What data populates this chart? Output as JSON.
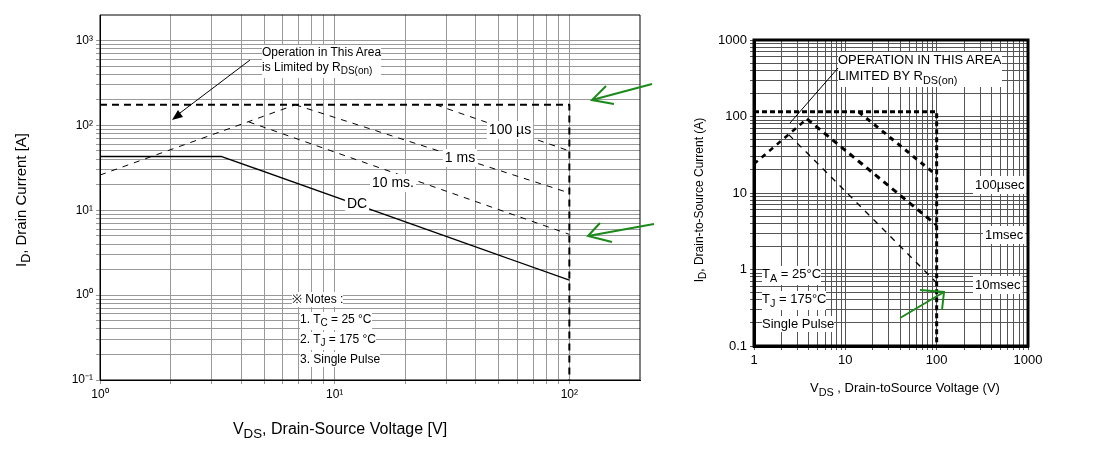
{
  "chart_data": [
    {
      "type": "line",
      "xlabel": "V$_{DS}$, Drain-Source Voltage [V]",
      "ylabel": "I$_{D}$, Drain Current [A]",
      "log": "xy",
      "grid": true,
      "legend": false,
      "marker": "none",
      "xlim": [
        1,
        200
      ],
      "ylim": [
        0.1,
        2000
      ],
      "xticks": [
        {
          "value": 1,
          "label": "10⁰"
        },
        {
          "value": 2,
          "label": null
        },
        {
          "value": 3,
          "label": null
        },
        {
          "value": 4,
          "label": null
        },
        {
          "value": 5,
          "label": null
        },
        {
          "value": 6,
          "label": null
        },
        {
          "value": 7,
          "label": null
        },
        {
          "value": 8,
          "label": null
        },
        {
          "value": 9,
          "label": null
        },
        {
          "value": 10,
          "label": "10¹"
        },
        {
          "value": 20,
          "label": null
        },
        {
          "value": 30,
          "label": null
        },
        {
          "value": 40,
          "label": null
        },
        {
          "value": 50,
          "label": null
        },
        {
          "value": 60,
          "label": null
        },
        {
          "value": 70,
          "label": null
        },
        {
          "value": 80,
          "label": null
        },
        {
          "value": 90,
          "label": null
        },
        {
          "value": 100,
          "label": "10²"
        }
      ],
      "yticks": [
        {
          "value": 0.1,
          "label": "10⁻¹"
        },
        {
          "value": 0.2,
          "label": null
        },
        {
          "value": 0.3,
          "label": null
        },
        {
          "value": 0.4,
          "label": null
        },
        {
          "value": 0.5,
          "label": null
        },
        {
          "value": 0.6,
          "label": null
        },
        {
          "value": 0.7,
          "label": null
        },
        {
          "value": 0.8,
          "label": null
        },
        {
          "value": 0.9,
          "label": null
        },
        {
          "value": 1,
          "label": "10⁰"
        },
        {
          "value": 2,
          "label": null
        },
        {
          "value": 3,
          "label": null
        },
        {
          "value": 4,
          "label": null
        },
        {
          "value": 5,
          "label": null
        },
        {
          "value": 6,
          "label": null
        },
        {
          "value": 7,
          "label": null
        },
        {
          "value": 8,
          "label": null
        },
        {
          "value": 9,
          "label": null
        },
        {
          "value": 10,
          "label": "10¹"
        },
        {
          "value": 20,
          "label": null
        },
        {
          "value": 30,
          "label": null
        },
        {
          "value": 40,
          "label": null
        },
        {
          "value": 50,
          "label": null
        },
        {
          "value": 60,
          "label": null
        },
        {
          "value": 70,
          "label": null
        },
        {
          "value": 80,
          "label": null
        },
        {
          "value": 90,
          "label": null
        },
        {
          "value": 100,
          "label": "10²"
        },
        {
          "value": 200,
          "label": null
        },
        {
          "value": 300,
          "label": null
        },
        {
          "value": 400,
          "label": null
        },
        {
          "value": 500,
          "label": null
        },
        {
          "value": 600,
          "label": null
        },
        {
          "value": 700,
          "label": null
        },
        {
          "value": 800,
          "label": null
        },
        {
          "value": 900,
          "label": null
        },
        {
          "value": 1000,
          "label": "10³"
        }
      ],
      "series": [
        {
          "color": "#000000",
          "line_style": "dashed",
          "x": [
            1,
            6.8
          ],
          "values": [
            26,
            175
          ]
        },
        {
          "color": "#000000",
          "line_style": "dashed",
          "x": [
            1,
            100,
            100
          ],
          "values": [
            175,
            175,
            0.1
          ]
        },
        {
          "name": "100 µs",
          "color": "#000000",
          "line_style": "dashed",
          "x": [
            27,
            100
          ],
          "values": [
            175,
            50
          ]
        },
        {
          "name": "1 ms",
          "color": "#000000",
          "line_style": "dashed",
          "x": [
            6.8,
            100
          ],
          "values": [
            175,
            16
          ]
        },
        {
          "name": "10 ms.",
          "color": "#000000",
          "line_style": "dashed",
          "x": [
            4.3,
            100
          ],
          "values": [
            110,
            5.2
          ]
        },
        {
          "name": "DC",
          "color": "#000000",
          "line_style": "solid",
          "x": [
            1,
            3.3,
            100
          ],
          "values": [
            43,
            43,
            1.5
          ]
        }
      ],
      "annotations": [
        "Operation in This Area\nis Limited by R$_{DS(on)}$",
        "※ Notes :",
        "1. T$_{C}$ = 25 °C",
        "2. T$_{J}$ = 175 °C",
        "3. Single Pulse"
      ]
    },
    {
      "type": "line",
      "xlabel": "V$_{DS}$ , Drain-toSource Voltage (V)",
      "ylabel": "I$_{D}$, Drain-to-Source Current (A)",
      "log": "xy",
      "grid": true,
      "legend": false,
      "marker": "none",
      "xlim": [
        1,
        1000
      ],
      "ylim": [
        0.1,
        1000
      ],
      "xticks": [
        1,
        {
          "value": 2,
          "label": null
        },
        {
          "value": 3,
          "label": null
        },
        {
          "value": 4,
          "label": null
        },
        {
          "value": 5,
          "label": null
        },
        {
          "value": 6,
          "label": null
        },
        {
          "value": 7,
          "label": null
        },
        {
          "value": 8,
          "label": null
        },
        {
          "value": 9,
          "label": null
        },
        10,
        {
          "value": 20,
          "label": null
        },
        {
          "value": 30,
          "label": null
        },
        {
          "value": 40,
          "label": null
        },
        {
          "value": 50,
          "label": null
        },
        {
          "value": 60,
          "label": null
        },
        {
          "value": 70,
          "label": null
        },
        {
          "value": 80,
          "label": null
        },
        {
          "value": 90,
          "label": null
        },
        100,
        {
          "value": 200,
          "label": null
        },
        {
          "value": 300,
          "label": null
        },
        {
          "value": 400,
          "label": null
        },
        {
          "value": 500,
          "label": null
        },
        {
          "value": 600,
          "label": null
        },
        {
          "value": 700,
          "label": null
        },
        {
          "value": 800,
          "label": null
        },
        {
          "value": 900,
          "label": null
        },
        1000
      ],
      "yticks": [
        0.1,
        {
          "value": 0.2,
          "label": null
        },
        {
          "value": 0.3,
          "label": null
        },
        {
          "value": 0.4,
          "label": null
        },
        {
          "value": 0.5,
          "label": null
        },
        {
          "value": 0.6,
          "label": null
        },
        {
          "value": 0.7,
          "label": null
        },
        {
          "value": 0.8,
          "label": null
        },
        {
          "value": 0.9,
          "label": null
        },
        1,
        {
          "value": 2,
          "label": null
        },
        {
          "value": 3,
          "label": null
        },
        {
          "value": 4,
          "label": null
        },
        {
          "value": 5,
          "label": null
        },
        {
          "value": 6,
          "label": null
        },
        {
          "value": 7,
          "label": null
        },
        {
          "value": 8,
          "label": null
        },
        {
          "value": 9,
          "label": null
        },
        10,
        {
          "value": 20,
          "label": null
        },
        {
          "value": 30,
          "label": null
        },
        {
          "value": 40,
          "label": null
        },
        {
          "value": 50,
          "label": null
        },
        {
          "value": 60,
          "label": null
        },
        {
          "value": 70,
          "label": null
        },
        {
          "value": 80,
          "label": null
        },
        {
          "value": 90,
          "label": null
        },
        100,
        {
          "value": 200,
          "label": null
        },
        {
          "value": 300,
          "label": null
        },
        {
          "value": 400,
          "label": null
        },
        {
          "value": 500,
          "label": null
        },
        {
          "value": 600,
          "label": null
        },
        {
          "value": 700,
          "label": null
        },
        {
          "value": 800,
          "label": null
        },
        {
          "value": 900,
          "label": null
        },
        1000
      ],
      "series": [
        {
          "color": "#000000",
          "line_style": "dashed",
          "x": [
            1,
            3.8
          ],
          "values": [
            24,
            93
          ]
        },
        {
          "color": "#000000",
          "line_style": "dashed",
          "x": [
            1,
            100,
            100
          ],
          "values": [
            115,
            115,
            0.1
          ]
        },
        {
          "name": "100µsec",
          "color": "#000000",
          "line_style": "dashed",
          "x": [
            14,
            100
          ],
          "values": [
            115,
            17
          ]
        },
        {
          "name": "1msec",
          "color": "#000000",
          "line_style": "dashed",
          "x": [
            3.8,
            100
          ],
          "values": [
            93,
            3.8
          ]
        },
        {
          "name": "10msec",
          "color": "#000000",
          "line_style": "dashed",
          "x": [
            2.4,
            100
          ],
          "values": [
            58,
            0.67
          ]
        }
      ],
      "annotations": [
        "OPERATION IN THIS AREA\nLIMITED BY R$_{DS(on)}$",
        "T$_{A}$ = 25°C",
        "T$_{J}$ = 175°C",
        "Single Pulse"
      ]
    }
  ]
}
